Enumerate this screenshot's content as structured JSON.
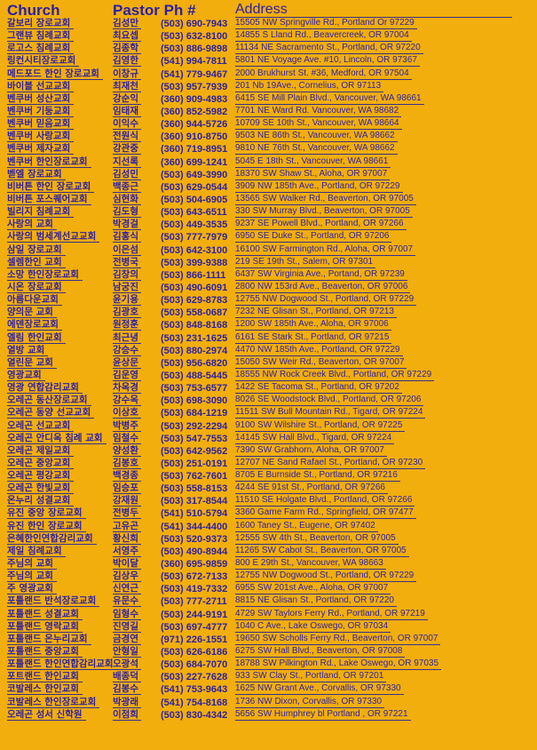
{
  "header": {
    "church": "Church",
    "pastor_phone": "Pastor Ph #",
    "address": "Address"
  },
  "colors": {
    "background": "#F2AE0C",
    "text": "#2B1FA8"
  },
  "rows": [
    {
      "church": "갈보리 장로교회",
      "pastor": "김성만",
      "phone": "(503) 690-7943",
      "address": "15505 NW Springville Rd., Portland Or 97229"
    },
    {
      "church": "그랜뷰 침례교회",
      "pastor": "최요셉",
      "phone": "(503) 632-8100",
      "address": "14855 S Lland Rd., Beavercreek, OR 97004"
    },
    {
      "church": "로고스 침례교회",
      "pastor": "김종학",
      "phone": "(503) 886-9898",
      "address": "11134 NE Sacramento St., Portland, OR 97220"
    },
    {
      "church": "링컨시티장로교회",
      "pastor": "김영한",
      "phone": "(541) 994-7811",
      "address": "5801 NE Voyage Ave. #10, Lincoln, OR 97367"
    },
    {
      "church": "메드포드 한인 장로교회",
      "pastor": "이창규",
      "phone": "(541) 779-9467",
      "address": "2000 Brukhurst St. #36, Medford, OR 97504"
    },
    {
      "church": "바이블 선교교회",
      "pastor": "최재천",
      "phone": "(503) 957-7939",
      "address": "201 Nb 19Ave., Cornelius, OR 97113"
    },
    {
      "church": "벤쿠버 성산교회",
      "pastor": "강순익",
      "phone": "(360) 909-4983",
      "address": "6415 SE Mill Plain Blvd., Vancouver, WA 98661"
    },
    {
      "church": "벤쿠버 기둥교회",
      "pastor": "임태재",
      "phone": "(360) 852-5982",
      "address": "7701 NE Ward Rd. Vancouver, WA 98682"
    },
    {
      "church": "벤쿠버 믿음교회",
      "pastor": "이익수",
      "phone": "(360) 944-5726",
      "address": "10709 SE 10th St., Vancouver, WA 98664"
    },
    {
      "church": "벤쿠버 사랑교회",
      "pastor": "전원식",
      "phone": "(360) 910-8750",
      "address": "9503 NE 86th St., Vancouver, WA 98662"
    },
    {
      "church": "벤쿠버 제자교회",
      "pastor": "강관중",
      "phone": "(360) 719-8951",
      "address": "9810 NE 76th St., Vancouver, WA 98662"
    },
    {
      "church": "벤쿠버 한인장로교회",
      "pastor": "지선록",
      "phone": "(360) 699-1241",
      "address": "5045 E 18th St., Vancouver, WA 98661"
    },
    {
      "church": "벧엘 장로교회",
      "pastor": "김성민",
      "phone": "(503) 649-3990",
      "address": "18370 SW Shaw St., Aloha, OR 97007"
    },
    {
      "church": "비버튼 한인 장로교회",
      "pastor": "백종근",
      "phone": "(503) 629-0544",
      "address": "3909 NW 185th Ave., Portland, OR 97229"
    },
    {
      "church": "비버튼 포스퀘어교회",
      "pastor": "심현화",
      "phone": "(503) 504-6905",
      "address": "13565 SW Walker Rd., Beaverton, OR 97005"
    },
    {
      "church": "빌리지 침례교회",
      "pastor": "김도형",
      "phone": "(503) 643-6511",
      "address": "330 SW Murray Blvd., Beaverton, OR 97005"
    },
    {
      "church": "사랑의 교회",
      "pastor": "박경걸",
      "phone": "(503) 449-3535",
      "address": "9237 SE Powell Blvd., Portland, OR 97266"
    },
    {
      "church": "사랑의 범세계선교교회",
      "pastor": "김홍식",
      "phone": "(503) 777-7979",
      "address": "6950 SE Duke St., Portland, OR 97206"
    },
    {
      "church": "삼일 장로교회",
      "pastor": "이은섬",
      "phone": "(503) 642-3100",
      "address": "16100 SW Farmington Rd., Aloha, OR 97007"
    },
    {
      "church": "셀렘한인 교회",
      "pastor": "전병국",
      "phone": "(503) 399-9388",
      "address": "219 SE 19th St., Salem, OR 97301"
    },
    {
      "church": "소망 한인장로교회",
      "pastor": "김창의",
      "phone": "(503) 866-1111",
      "address": "6437 SW Virginia Ave., Portand, OR 97239"
    },
    {
      "church": "시온 장로교회",
      "pastor": "남궁진",
      "phone": "(503) 490-6091",
      "address": "2800 NW 153rd Ave., Beaverton, OR 97006"
    },
    {
      "church": "아름다운교회",
      "pastor": "윤기용",
      "phone": "(503) 629-8783",
      "address": "12755 NW Dogwood St., Portland, OR 97229"
    },
    {
      "church": "양의문 교회",
      "pastor": "김광호",
      "phone": "(503) 558-0687",
      "address": "7232 NE Glisan St., Portland, OR 97213"
    },
    {
      "church": "에덴장로교회",
      "pastor": "원정훈",
      "phone": "(503) 848-8168",
      "address": "1200 SW 185th Ave., Aloha, OR 97006"
    },
    {
      "church": "엘림 한인교회",
      "pastor": "최근녕",
      "phone": "(503) 231-1625",
      "address": "6161 SE Stark St., Portland, OR 97215"
    },
    {
      "church": "열방 교회",
      "pastor": "강승수",
      "phone": "(503) 880-2974",
      "address": "4470 NW 185th Ave., Portland, OR 97229"
    },
    {
      "church": "열린문 교회",
      "pastor": "윤상문",
      "phone": "(503) 956-6820",
      "address": "15050 SW Weir Rd., Beaverton, OR 97007"
    },
    {
      "church": "영광교회",
      "pastor": "김운영",
      "phone": "(503) 488-5445",
      "address": "18555 NW Rock Creek Blvd., Portland, OR 97229"
    },
    {
      "church": "영광 연합감리교회",
      "pastor": "차옥경",
      "phone": "(503) 753-6577",
      "address": "1422 SE Tacoma St., Portland, OR 97202"
    },
    {
      "church": "오레곤 동산장로교회",
      "pastor": "강수옥",
      "phone": "(503) 698-3090",
      "address": "8026 SE Woodstock Blvd., Portland, OR 97206"
    },
    {
      "church": "오레곤 동양 선교교회",
      "pastor": "이상호",
      "phone": "(503) 684-1219",
      "address": "11511 SW Bull Mountain Rd., Tigard, OR 97224"
    },
    {
      "church": "오레곤 선교교회",
      "pastor": "박병주",
      "phone": "(503) 292-2294",
      "address": "9100 SW Wilshire St., Portland, OR 97225"
    },
    {
      "church": "오레곤 안디옥 침례 교회",
      "pastor": "임철수",
      "phone": "(503) 547-7553",
      "address": "14145 SW Hall Blvd., Tigard, OR 97224"
    },
    {
      "church": "오레곤 제일교회",
      "pastor": "양성환",
      "phone": "(503) 642-9562",
      "address": "7390 SW Grabhorn, Aloha, OR 97007"
    },
    {
      "church": "오레곤 중앙교회",
      "pastor": "김봉호",
      "phone": "(503) 251-0191",
      "address": "12707 NE Sand Rafael St., Portland, OR 97230"
    },
    {
      "church": "오레곤 평강교회",
      "pastor": "백경종",
      "phone": "(503) 762-7601",
      "address": "8705 E Burnside St., Portland, OR 97216"
    },
    {
      "church": "오레곤 한빛교회",
      "pastor": "임승포",
      "phone": "(503) 558-8153",
      "address": "4244 SE 91st St., Portland, OR 97266"
    },
    {
      "church": "온누리 성결교회",
      "pastor": "강재원",
      "phone": "(503) 317-8544",
      "address": "11510 SE Holgate Blvd., Portland, OR 97266"
    },
    {
      "church": "유진 중앙 장로교회",
      "pastor": "전병두",
      "phone": "(541) 510-5794",
      "address": "3360 Game Farm Rd., Springfield, OR 97477"
    },
    {
      "church": "유진 한인 장로교회",
      "pastor": "고유곤",
      "phone": "(541) 344-4400",
      "address": "1600 Taney St., Eugene, OR 97402"
    },
    {
      "church": "은혜한인연합감리교회",
      "pastor": "황신희",
      "phone": "(503) 520-9373",
      "address": "12555 SW 4th St., Beaverton, OR 97005"
    },
    {
      "church": "제일 침례교회",
      "pastor": "서영주",
      "phone": "(503) 490-8944",
      "address": "11265 SW Cabot St., Beaverton, OR 97005"
    },
    {
      "church": "주님의 교회",
      "pastor": "박이달",
      "phone": "(360) 695-9859",
      "address": "800 E 29th St., Vancouver, WA 98663"
    },
    {
      "church": "주님의 교회",
      "pastor": "김상우",
      "phone": "(503) 672-7133",
      "address": "12755 NW Dogwood St., Portland, OR 97229"
    },
    {
      "church": "주 영광교회",
      "pastor": "신연근",
      "phone": "(503) 419-7332",
      "address": "6955 SW 201st Ave., Aloha, OR 97007"
    },
    {
      "church": "포틀랜드 반석장로교회",
      "pastor": "유문수",
      "phone": "(503) 777-2711",
      "address": "8815 NE Glisan St., Portland, OR 97220"
    },
    {
      "church": "포틀랜드 성결교회",
      "pastor": "임형수",
      "phone": "(503) 244-9191",
      "address": "4729 SW Taylors Ferry Rd., Portland, OR 97219"
    },
    {
      "church": "포틀랜드 영락교회",
      "pastor": "진영길",
      "phone": "(503) 697-4777",
      "address": "1040 C Ave., Lake Oswego, OR 97034"
    },
    {
      "church": "포틀랜드 온누리교회",
      "pastor": "금경연",
      "phone": "(971) 226-1551",
      "address": "19650 SW Scholls Ferry Rd., Beaverton, OR 97007"
    },
    {
      "church": "포틀랜드 중앙교회",
      "pastor": "안형일",
      "phone": "(503) 626-6186",
      "address": "6275 SW Hall Blvd., Beaverton, OR 97008"
    },
    {
      "church": "포틀랜드 한인연합감리교회",
      "pastor": "오광석",
      "phone": "(503) 684-7070",
      "address": "18788 SW Pilkington Rd., Lake Oswego, OR 97035"
    },
    {
      "church": "포트랜드 한인교회",
      "pastor": "배종덕",
      "phone": "(503) 227-7628",
      "address": "933 SW Clay St., Portland, OR 97201"
    },
    {
      "church": "코발레스 한인교회",
      "pastor": "김봉수",
      "phone": "(541) 753-9643",
      "address": "1625 NW Grant Ave., Corvallis, OR 97330"
    },
    {
      "church": "코발레스 한인장로교회",
      "pastor": "박광래",
      "phone": "(541) 754-8168",
      "address": "1736 NW Dixon, Corvallis, OR 97330"
    },
    {
      "church": "오레곤 성서 신학원",
      "pastor": "이점희",
      "phone": "(503) 830-4342",
      "address": "5656 SW Humphrey bl Portland , OR 97221"
    }
  ]
}
